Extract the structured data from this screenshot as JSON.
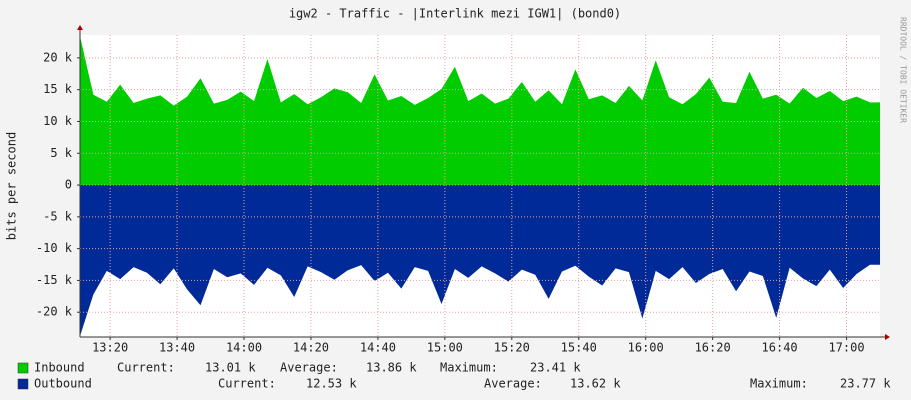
{
  "chart_data": {
    "type": "area",
    "title": "igw2 - Traffic - |Interlink mezi IGW1| (bond0)",
    "y_label": "bits per second",
    "watermark": "RRDTOOL / TOBI OETIKER",
    "grid": true,
    "xlim": [
      791,
      1030
    ],
    "xticks": [
      {
        "value": 800,
        "label": "13:20"
      },
      {
        "value": 820,
        "label": "13:40"
      },
      {
        "value": 840,
        "label": "14:00"
      },
      {
        "value": 860,
        "label": "14:20"
      },
      {
        "value": 880,
        "label": "14:40"
      },
      {
        "value": 900,
        "label": "15:00"
      },
      {
        "value": 920,
        "label": "15:20"
      },
      {
        "value": 940,
        "label": "15:40"
      },
      {
        "value": 960,
        "label": "16:00"
      },
      {
        "value": 980,
        "label": "16:20"
      },
      {
        "value": 1000,
        "label": "16:40"
      },
      {
        "value": 1020,
        "label": "17:00"
      }
    ],
    "ylim": [
      -23900,
      23600
    ],
    "yticks": [
      {
        "value": -20000,
        "label": "-20 k"
      },
      {
        "value": -15000,
        "label": "-15 k"
      },
      {
        "value": -10000,
        "label": "-10 k"
      },
      {
        "value": -5000,
        "label": "-5 k"
      },
      0,
      {
        "value": 5000,
        "label": "5 k"
      },
      {
        "value": 10000,
        "label": "10 k"
      },
      {
        "value": 15000,
        "label": "15 k"
      },
      {
        "value": 20000,
        "label": "20 k"
      }
    ],
    "x": [
      791,
      795,
      799,
      803,
      807,
      811,
      815,
      819,
      823,
      827,
      831,
      835,
      839,
      843,
      847,
      851,
      855,
      859,
      863,
      867,
      871,
      875,
      879,
      883,
      887,
      891,
      895,
      899,
      903,
      907,
      911,
      915,
      919,
      923,
      927,
      931,
      935,
      939,
      943,
      947,
      951,
      955,
      959,
      963,
      967,
      971,
      975,
      979,
      983,
      987,
      991,
      995,
      999,
      1003,
      1007,
      1011,
      1015,
      1019,
      1023,
      1027
    ],
    "series": [
      {
        "name": "Inbound",
        "color": "#00cc00",
        "legend_stats": [
          {
            "label": "Current:",
            "value": "13.01 k"
          },
          {
            "label": "Average:",
            "value": "13.86 k"
          },
          {
            "label": "Maximum:",
            "value": "23.41 k"
          }
        ],
        "values": [
          23400,
          14200,
          13100,
          15800,
          12900,
          13600,
          14100,
          12500,
          13900,
          16800,
          12800,
          13400,
          14700,
          13200,
          19800,
          13000,
          14300,
          12700,
          13800,
          15200,
          14600,
          12900,
          17400,
          13300,
          14000,
          12600,
          13700,
          15100,
          18600,
          13200,
          14400,
          12800,
          13600,
          16200,
          13100,
          14900,
          12700,
          18200,
          13500,
          14100,
          12900,
          15600,
          13300,
          19600,
          13800,
          12700,
          14300,
          16900,
          13100,
          12900,
          17800,
          13600,
          14200,
          12800,
          15300,
          13700,
          14800,
          13200,
          13900,
          13010
        ]
      },
      {
        "name": "Outbound",
        "color": "#002a97",
        "legend_stats": [
          {
            "label": "Current:",
            "value": "12.53 k"
          },
          {
            "label": "Average:",
            "value": "13.62 k"
          },
          {
            "label": "Maximum:",
            "value": "23.77 k"
          }
        ],
        "values": [
          -23770,
          -17200,
          -13500,
          -14800,
          -12900,
          -13800,
          -15600,
          -13100,
          -16400,
          -18900,
          -13200,
          -14500,
          -13900,
          -15700,
          -13000,
          -14200,
          -17600,
          -12800,
          -13700,
          -14900,
          -13400,
          -12600,
          -15100,
          -13800,
          -16300,
          -12900,
          -13500,
          -18700,
          -13200,
          -14600,
          -12800,
          -13900,
          -15200,
          -13300,
          -14100,
          -17900,
          -13600,
          -12700,
          -14400,
          -15800,
          -13100,
          -13700,
          -21000,
          -13500,
          -14800,
          -12900,
          -15400,
          -14000,
          -13200,
          -16700,
          -13600,
          -14300,
          -20900,
          -13000,
          -14700,
          -15900,
          -13300,
          -16200,
          -14000,
          -12530
        ]
      }
    ]
  }
}
